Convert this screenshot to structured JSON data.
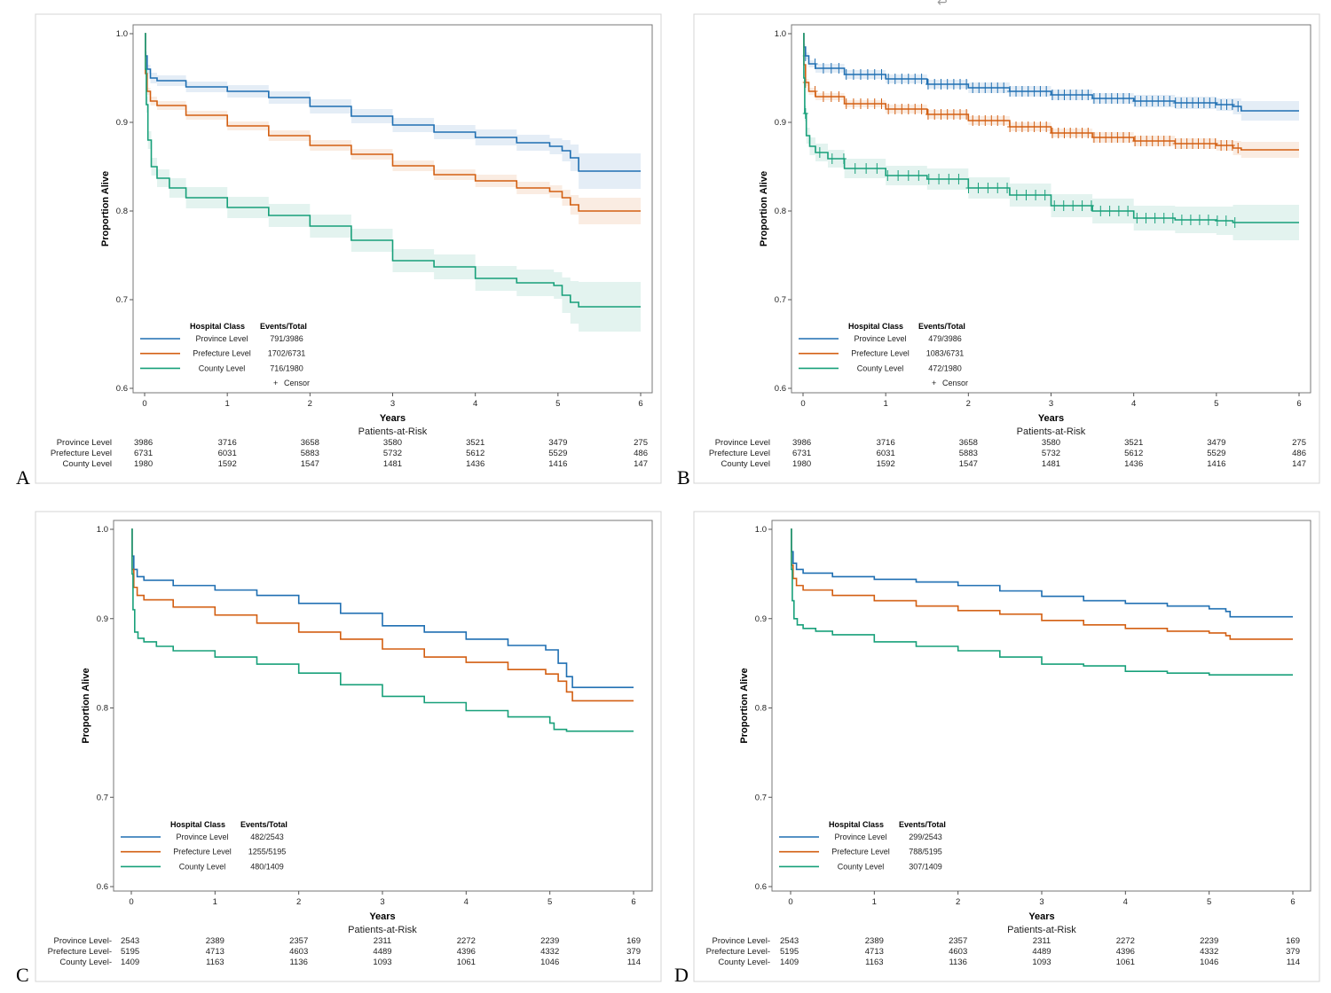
{
  "colors": {
    "province": "#1f6fb2",
    "prefecture": "#d35f12",
    "county": "#18a07a"
  },
  "stray_mark": "↩",
  "chart_data": [
    {
      "panel": "A",
      "type": "line",
      "ylabel": "Proportion Alive",
      "xlabel": "Years",
      "ylim": [
        0.6,
        1.0
      ],
      "xlim": [
        0,
        6
      ],
      "yticks": [
        "0.6",
        "0.7",
        "0.8",
        "0.9",
        "1.0"
      ],
      "xticks": [
        "0",
        "1",
        "2",
        "3",
        "4",
        "5",
        "6"
      ],
      "ci": true,
      "censor": false,
      "legend": {
        "head_class": "Hospital Class",
        "head_events": "Events/Total",
        "censor_label": "Censor",
        "censor_symbol": "+"
      },
      "risk_title": "Patients-at-Risk",
      "series": [
        {
          "name": "Province Level",
          "risk_label": "Province Level",
          "events": "791/3986",
          "color": "province",
          "x": [
            0,
            0.01,
            0.03,
            0.07,
            0.15,
            0.5,
            1,
            1.5,
            2,
            2.5,
            3,
            3.5,
            4,
            4.5,
            4.9,
            5.05,
            5.15,
            5.25,
            6
          ],
          "y": [
            1.0,
            0.975,
            0.96,
            0.95,
            0.947,
            0.94,
            0.935,
            0.928,
            0.918,
            0.907,
            0.897,
            0.889,
            0.883,
            0.877,
            0.873,
            0.868,
            0.86,
            0.845,
            0.845
          ],
          "ci_w": [
            0.0,
            0.005,
            0.005,
            0.006,
            0.006,
            0.006,
            0.007,
            0.007,
            0.008,
            0.008,
            0.008,
            0.008,
            0.009,
            0.009,
            0.009,
            0.012,
            0.015,
            0.02,
            0.02
          ],
          "risk": [
            "3986",
            "3716",
            "3658",
            "3580",
            "3521",
            "3479",
            "275"
          ]
        },
        {
          "name": "Prefecture Level",
          "risk_label": "Prefecture Level",
          "events": "1702/6731",
          "color": "prefecture",
          "x": [
            0,
            0.01,
            0.03,
            0.07,
            0.15,
            0.5,
            1,
            1.5,
            2,
            2.5,
            3,
            3.5,
            4,
            4.5,
            4.9,
            5.05,
            5.15,
            5.25,
            6
          ],
          "y": [
            1.0,
            0.955,
            0.935,
            0.924,
            0.919,
            0.908,
            0.896,
            0.885,
            0.874,
            0.864,
            0.851,
            0.841,
            0.834,
            0.826,
            0.822,
            0.815,
            0.807,
            0.8,
            0.8
          ],
          "ci_w": [
            0.0,
            0.004,
            0.004,
            0.005,
            0.005,
            0.005,
            0.005,
            0.006,
            0.006,
            0.006,
            0.006,
            0.006,
            0.007,
            0.007,
            0.007,
            0.009,
            0.011,
            0.015,
            0.015
          ],
          "risk": [
            "6731",
            "6031",
            "5883",
            "5732",
            "5612",
            "5529",
            "486"
          ]
        },
        {
          "name": "County Level",
          "risk_label": "County Level",
          "events": "716/1980",
          "color": "county",
          "x": [
            0,
            0.01,
            0.02,
            0.04,
            0.08,
            0.15,
            0.3,
            0.5,
            1,
            1.5,
            2,
            2.5,
            3,
            3.5,
            4,
            4.5,
            4.95,
            5.05,
            5.15,
            5.25,
            6
          ],
          "y": [
            1.0,
            0.96,
            0.92,
            0.88,
            0.85,
            0.837,
            0.826,
            0.815,
            0.804,
            0.795,
            0.783,
            0.767,
            0.744,
            0.737,
            0.724,
            0.719,
            0.716,
            0.705,
            0.697,
            0.692,
            0.692
          ],
          "ci_w": [
            0.0,
            0.008,
            0.009,
            0.01,
            0.01,
            0.01,
            0.011,
            0.012,
            0.012,
            0.013,
            0.013,
            0.013,
            0.013,
            0.014,
            0.014,
            0.015,
            0.015,
            0.02,
            0.024,
            0.028,
            0.028
          ],
          "risk": [
            "1980",
            "1592",
            "1547",
            "1481",
            "1436",
            "1416",
            "147"
          ]
        }
      ]
    },
    {
      "panel": "B",
      "type": "line",
      "ylabel": "Proportion Alive",
      "xlabel": "Years",
      "ylim": [
        0.6,
        1.0
      ],
      "xlim": [
        0,
        6
      ],
      "yticks": [
        "0.6",
        "0.7",
        "0.8",
        "0.9",
        "1.0"
      ],
      "xticks": [
        "0",
        "1",
        "2",
        "3",
        "4",
        "5",
        "6"
      ],
      "ci": true,
      "censor": true,
      "legend": {
        "head_class": "Hospital Class",
        "head_events": "Events/Total",
        "censor_label": "Censor",
        "censor_symbol": "+"
      },
      "risk_title": "Patients-at-Risk",
      "series": [
        {
          "name": "Province Level",
          "risk_label": "Province Level",
          "events": "479/3986",
          "color": "province",
          "x": [
            0,
            0.01,
            0.03,
            0.07,
            0.15,
            0.5,
            1,
            1.5,
            2,
            2.5,
            3,
            3.5,
            4,
            4.5,
            5,
            5.2,
            5.3,
            6
          ],
          "y": [
            1.0,
            0.985,
            0.975,
            0.966,
            0.961,
            0.954,
            0.949,
            0.943,
            0.939,
            0.935,
            0.931,
            0.927,
            0.924,
            0.922,
            0.92,
            0.918,
            0.913,
            0.913
          ],
          "ci_w": [
            0.0,
            0.004,
            0.004,
            0.004,
            0.005,
            0.005,
            0.005,
            0.005,
            0.006,
            0.006,
            0.006,
            0.006,
            0.007,
            0.007,
            0.007,
            0.009,
            0.011,
            0.011
          ],
          "risk": [
            "3986",
            "3716",
            "3658",
            "3580",
            "3521",
            "3479",
            "275"
          ]
        },
        {
          "name": "Prefecture Level",
          "risk_label": "Prefecture Level",
          "events": "1083/6731",
          "color": "prefecture",
          "x": [
            0,
            0.01,
            0.03,
            0.07,
            0.15,
            0.5,
            1,
            1.5,
            2,
            2.5,
            3,
            3.5,
            4,
            4.5,
            5,
            5.2,
            5.3,
            6
          ],
          "y": [
            1.0,
            0.965,
            0.945,
            0.935,
            0.929,
            0.921,
            0.915,
            0.909,
            0.902,
            0.895,
            0.888,
            0.883,
            0.879,
            0.876,
            0.874,
            0.871,
            0.869,
            0.869
          ],
          "ci_w": [
            0.0,
            0.004,
            0.004,
            0.004,
            0.004,
            0.004,
            0.005,
            0.005,
            0.005,
            0.005,
            0.005,
            0.006,
            0.006,
            0.006,
            0.006,
            0.008,
            0.009,
            0.009
          ],
          "risk": [
            "6731",
            "6031",
            "5883",
            "5732",
            "5612",
            "5529",
            "486"
          ]
        },
        {
          "name": "County Level",
          "risk_label": "County Level",
          "events": "472/1980",
          "color": "county",
          "x": [
            0,
            0.01,
            0.02,
            0.04,
            0.08,
            0.15,
            0.3,
            0.5,
            1,
            1.5,
            2,
            2.5,
            3,
            3.5,
            4,
            4.5,
            5,
            5.2,
            6
          ],
          "y": [
            1.0,
            0.95,
            0.91,
            0.885,
            0.873,
            0.866,
            0.859,
            0.848,
            0.84,
            0.836,
            0.826,
            0.818,
            0.806,
            0.8,
            0.792,
            0.79,
            0.789,
            0.787,
            0.787
          ],
          "ci_w": [
            0.0,
            0.008,
            0.009,
            0.009,
            0.01,
            0.01,
            0.01,
            0.011,
            0.011,
            0.012,
            0.012,
            0.013,
            0.013,
            0.014,
            0.014,
            0.015,
            0.016,
            0.02,
            0.02
          ],
          "risk": [
            "1980",
            "1592",
            "1547",
            "1481",
            "1436",
            "1416",
            "147"
          ]
        }
      ]
    },
    {
      "panel": "C",
      "type": "line",
      "ylabel": "Proportion Alive",
      "xlabel": "Years",
      "ylim": [
        0.6,
        1.0
      ],
      "xlim": [
        0,
        6
      ],
      "yticks": [
        "0.6",
        "0.7",
        "0.8",
        "0.9",
        "1.0"
      ],
      "xticks": [
        "0",
        "1",
        "2",
        "3",
        "4",
        "5",
        "6"
      ],
      "ci": false,
      "censor": false,
      "legend": {
        "head_class": "Hospital Class",
        "head_events": "Events/Total",
        "censor_label": "",
        "censor_symbol": ""
      },
      "risk_title": "Patients-at-Risk",
      "series": [
        {
          "name": "Province Level",
          "risk_label": "Province Level-",
          "events": "482/2543",
          "color": "province",
          "x": [
            0,
            0.01,
            0.03,
            0.07,
            0.15,
            0.5,
            1,
            1.5,
            2,
            2.5,
            3,
            3.5,
            4,
            4.5,
            4.95,
            5.1,
            5.2,
            5.27,
            6
          ],
          "y": [
            1.0,
            0.97,
            0.955,
            0.947,
            0.943,
            0.937,
            0.932,
            0.926,
            0.917,
            0.906,
            0.892,
            0.885,
            0.877,
            0.87,
            0.865,
            0.85,
            0.835,
            0.823,
            0.823
          ],
          "risk": [
            "2543",
            "2389",
            "2357",
            "2311",
            "2272",
            "2239",
            "169"
          ]
        },
        {
          "name": "Prefecture Level",
          "risk_label": "Prefecture Level-",
          "events": "1255/5195",
          "color": "prefecture",
          "x": [
            0,
            0.01,
            0.03,
            0.07,
            0.15,
            0.5,
            1,
            1.5,
            2,
            2.5,
            3,
            3.5,
            4,
            4.5,
            4.95,
            5.1,
            5.2,
            5.27,
            6
          ],
          "y": [
            1.0,
            0.955,
            0.935,
            0.926,
            0.921,
            0.913,
            0.904,
            0.895,
            0.885,
            0.877,
            0.866,
            0.857,
            0.851,
            0.843,
            0.838,
            0.83,
            0.818,
            0.808,
            0.808
          ],
          "risk": [
            "5195",
            "4713",
            "4603",
            "4489",
            "4396",
            "4332",
            "379"
          ]
        },
        {
          "name": "County Level",
          "risk_label": "County Level-",
          "events": "480/1409",
          "color": "county",
          "x": [
            0,
            0.01,
            0.02,
            0.04,
            0.08,
            0.15,
            0.3,
            0.5,
            1,
            1.5,
            2,
            2.5,
            3,
            3.5,
            4,
            4.5,
            5,
            5.05,
            5.2,
            6
          ],
          "y": [
            1.0,
            0.95,
            0.91,
            0.885,
            0.878,
            0.874,
            0.869,
            0.864,
            0.857,
            0.849,
            0.839,
            0.826,
            0.813,
            0.806,
            0.797,
            0.79,
            0.783,
            0.776,
            0.774,
            0.774
          ],
          "risk": [
            "1409",
            "1163",
            "1136",
            "1093",
            "1061",
            "1046",
            "114"
          ]
        }
      ]
    },
    {
      "panel": "D",
      "type": "line",
      "ylabel": "Proportion Alive",
      "xlabel": "Years",
      "ylim": [
        0.6,
        1.0
      ],
      "xlim": [
        0,
        6
      ],
      "yticks": [
        "0.6",
        "0.7",
        "0.8",
        "0.9",
        "1.0"
      ],
      "xticks": [
        "0",
        "1",
        "2",
        "3",
        "4",
        "5",
        "6"
      ],
      "ci": false,
      "censor": false,
      "legend": {
        "head_class": "Hospital Class",
        "head_events": "Events/Total",
        "censor_label": "",
        "censor_symbol": ""
      },
      "risk_title": "Patients-at-Risk",
      "series": [
        {
          "name": "Province Level",
          "risk_label": "Province Level-",
          "events": "299/2543",
          "color": "province",
          "x": [
            0,
            0.01,
            0.03,
            0.07,
            0.15,
            0.5,
            1,
            1.5,
            2,
            2.5,
            3,
            3.5,
            4,
            4.5,
            5,
            5.2,
            5.25,
            6
          ],
          "y": [
            1.0,
            0.975,
            0.962,
            0.955,
            0.951,
            0.947,
            0.944,
            0.941,
            0.937,
            0.931,
            0.925,
            0.92,
            0.917,
            0.914,
            0.911,
            0.908,
            0.902,
            0.902
          ],
          "risk": [
            "2543",
            "2389",
            "2357",
            "2311",
            "2272",
            "2239",
            "169"
          ]
        },
        {
          "name": "Prefecture Level",
          "risk_label": "Prefecture Level-",
          "events": "788/5195",
          "color": "prefecture",
          "x": [
            0,
            0.01,
            0.03,
            0.07,
            0.15,
            0.5,
            1,
            1.5,
            2,
            2.5,
            3,
            3.5,
            4,
            4.5,
            5,
            5.2,
            5.25,
            6
          ],
          "y": [
            1.0,
            0.96,
            0.945,
            0.937,
            0.932,
            0.926,
            0.92,
            0.914,
            0.909,
            0.905,
            0.898,
            0.893,
            0.889,
            0.886,
            0.884,
            0.881,
            0.877,
            0.877
          ],
          "risk": [
            "5195",
            "4713",
            "4603",
            "4489",
            "4396",
            "4332",
            "379"
          ]
        },
        {
          "name": "County Level",
          "risk_label": "County Level-",
          "events": "307/1409",
          "color": "county",
          "x": [
            0,
            0.01,
            0.02,
            0.04,
            0.08,
            0.15,
            0.3,
            0.5,
            1,
            1.5,
            2,
            2.5,
            3,
            3.5,
            4,
            4.5,
            5,
            6
          ],
          "y": [
            1.0,
            0.955,
            0.92,
            0.9,
            0.893,
            0.889,
            0.886,
            0.882,
            0.874,
            0.869,
            0.864,
            0.857,
            0.849,
            0.847,
            0.841,
            0.839,
            0.837,
            0.837
          ],
          "risk": [
            "1409",
            "1163",
            "1136",
            "1093",
            "1061",
            "1046",
            "114"
          ]
        }
      ]
    }
  ]
}
